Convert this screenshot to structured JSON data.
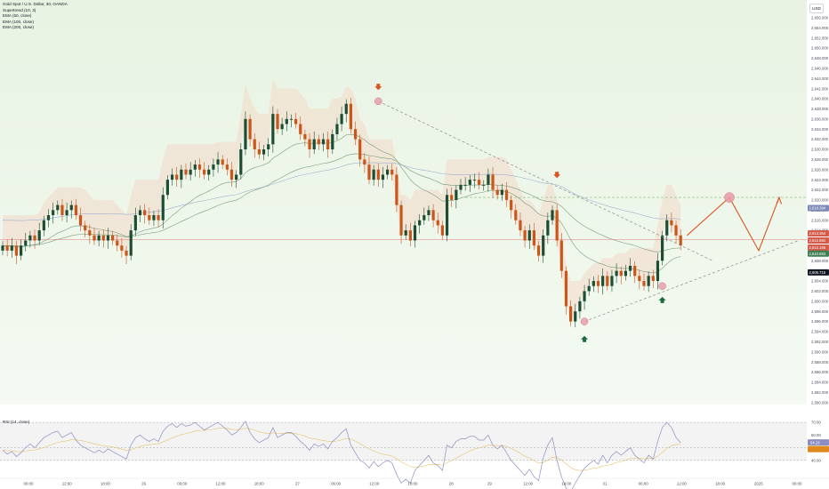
{
  "legend": {
    "title": "Gold Spot / U.S. Dollar, 30, OANDA",
    "supertrend": "Supertrend (10, 3)",
    "ema50": "EMA (50, close)",
    "ema100": "EMA (100, close)",
    "ema200": "EMA (200, close)"
  },
  "currency": "USD",
  "rsi_label": "RSI (14, close)",
  "colors": {
    "up": "#1d4d32",
    "down": "#c9571c",
    "bg_top": "#e8f3e3",
    "bg_bottom": "#f4faf2",
    "projection": "#d9541e",
    "marker_fill": "#e99aa8",
    "trend": "#8a8a8a",
    "ema_green": "#5a8a5d",
    "ema_blue": "#8a9fca",
    "rsi": "#8d8fc2",
    "red_line": "#e06b6b"
  },
  "chart_data": [
    {
      "type": "candlestick",
      "instrument": "Gold Spot / U.S. Dollar",
      "timeframe": "30",
      "y_axis_ticks": [
        "2,658.000",
        "2,656.000",
        "2,654.000",
        "2,652.000",
        "2,650.000",
        "2,648.000",
        "2,646.000",
        "2,644.000",
        "2,642.000",
        "2,640.000",
        "2,638.000",
        "2,636.000",
        "2,634.000",
        "2,632.000",
        "2,630.000",
        "2,628.000",
        "2,626.000",
        "2,624.000",
        "2,622.000",
        "2,620.000",
        "2,618.000",
        "2,616.000",
        "2,614.000",
        "2,612.000",
        "2,610.000",
        "2,608.000",
        "2,606.000",
        "2,604.000",
        "2,602.000",
        "2,600.000",
        "2,598.000",
        "2,596.000",
        "2,594.000",
        "2,592.000",
        "2,590.000",
        "2,588.000",
        "2,586.000",
        "2,584.000",
        "2,582.000",
        "2,580.000"
      ],
      "ylim": [
        2580,
        2659
      ],
      "x_axis_ticks": [
        "06:00",
        "12:00",
        "18:00",
        "26",
        "06:00",
        "12:00",
        "18:00",
        "27",
        "06:00",
        "12:00",
        "18:00",
        "28",
        "29",
        "12:00",
        "18:00",
        "31",
        "06:00",
        "12:00",
        "18:00",
        "2025",
        "06:00"
      ],
      "badges": [
        {
          "text": "2,618.394",
          "y": 2618.4,
          "color": "#7d8ab8"
        },
        {
          "text": "2,613.354",
          "y": 2613.4,
          "color": "#d45a4a"
        },
        {
          "text": "2,612.882",
          "y": 2612.0,
          "color": "#d45a4a"
        },
        {
          "text": "2,612.185",
          "y": 2610.6,
          "color": "#d45a4a"
        },
        {
          "text": "2,610.883",
          "y": 2609.4,
          "color": "#3f7e52"
        },
        {
          "text": "2,605.715",
          "y": 2605.7,
          "color": "#131722"
        }
      ],
      "close": [
        2611,
        2610,
        2611,
        2609,
        2611,
        2612,
        2613,
        2612,
        2614,
        2616,
        2617,
        2618,
        2619,
        2617,
        2618,
        2619,
        2617,
        2615,
        2614,
        2613,
        2612,
        2613,
        2612,
        2613,
        2612,
        2611,
        2610,
        2609,
        2614,
        2617,
        2618,
        2617,
        2616,
        2617,
        2616,
        2621,
        2624,
        2625,
        2624,
        2626,
        2625,
        2626,
        2627,
        2626,
        2625,
        2626,
        2627,
        2628,
        2627,
        2626,
        2624,
        2625,
        2630,
        2636,
        2632,
        2630,
        2629,
        2630,
        2631,
        2637,
        2634,
        2635,
        2636,
        2636,
        2635,
        2633,
        2632,
        2630,
        2632,
        2631,
        2632,
        2630,
        2633,
        2635,
        2637,
        2639,
        2634,
        2632,
        2628,
        2627,
        2624,
        2626,
        2624,
        2625,
        2626,
        2625,
        2619,
        2613,
        2614,
        2612,
        2615,
        2616,
        2617,
        2618,
        2616,
        2615,
        2613,
        2621,
        2620,
        2622,
        2623,
        2623,
        2624,
        2624,
        2623,
        2623,
        2625,
        2622,
        2621,
        2622,
        2620,
        2618,
        2616,
        2614,
        2612,
        2614,
        2611,
        2609,
        2613,
        2616,
        2618,
        2612,
        2606,
        2599,
        2596,
        2598,
        2600,
        2602,
        2603,
        2604,
        2603,
        2605,
        2603,
        2605,
        2606,
        2605,
        2606,
        2607,
        2605,
        2604,
        2603,
        2605,
        2604,
        2608,
        2613,
        2616,
        2615,
        2613,
        2611
      ],
      "rsi_ticks": [
        "70.00",
        "60.00",
        "54.13",
        "40.00"
      ],
      "rsi": [
        48,
        45,
        47,
        43,
        46,
        50,
        53,
        50,
        54,
        58,
        60,
        62,
        63,
        58,
        60,
        62,
        56,
        52,
        50,
        48,
        46,
        48,
        46,
        49,
        47,
        45,
        43,
        41,
        52,
        58,
        60,
        57,
        55,
        57,
        55,
        63,
        67,
        69,
        66,
        69,
        67,
        68,
        70,
        67,
        64,
        66,
        68,
        70,
        67,
        64,
        60,
        62,
        66,
        71,
        62,
        57,
        54,
        56,
        58,
        66,
        58,
        60,
        62,
        62,
        59,
        55,
        52,
        48,
        53,
        51,
        53,
        49,
        55,
        58,
        62,
        65,
        52,
        46,
        40,
        38,
        34,
        39,
        35,
        38,
        40,
        38,
        29,
        22,
        25,
        22,
        32,
        36,
        40,
        44,
        38,
        36,
        32,
        52,
        50,
        55,
        57,
        57,
        59,
        59,
        56,
        56,
        60,
        52,
        49,
        52,
        46,
        40,
        36,
        32,
        28,
        33,
        27,
        24,
        42,
        52,
        58,
        40,
        27,
        18,
        15,
        22,
        28,
        34,
        37,
        40,
        37,
        44,
        38,
        44,
        47,
        44,
        47,
        50,
        44,
        41,
        38,
        44,
        41,
        55,
        66,
        70,
        66,
        58,
        54
      ],
      "projection": [
        2613,
        2620.5,
        2610,
        2620.5
      ],
      "target_level": 2620.5
    }
  ]
}
